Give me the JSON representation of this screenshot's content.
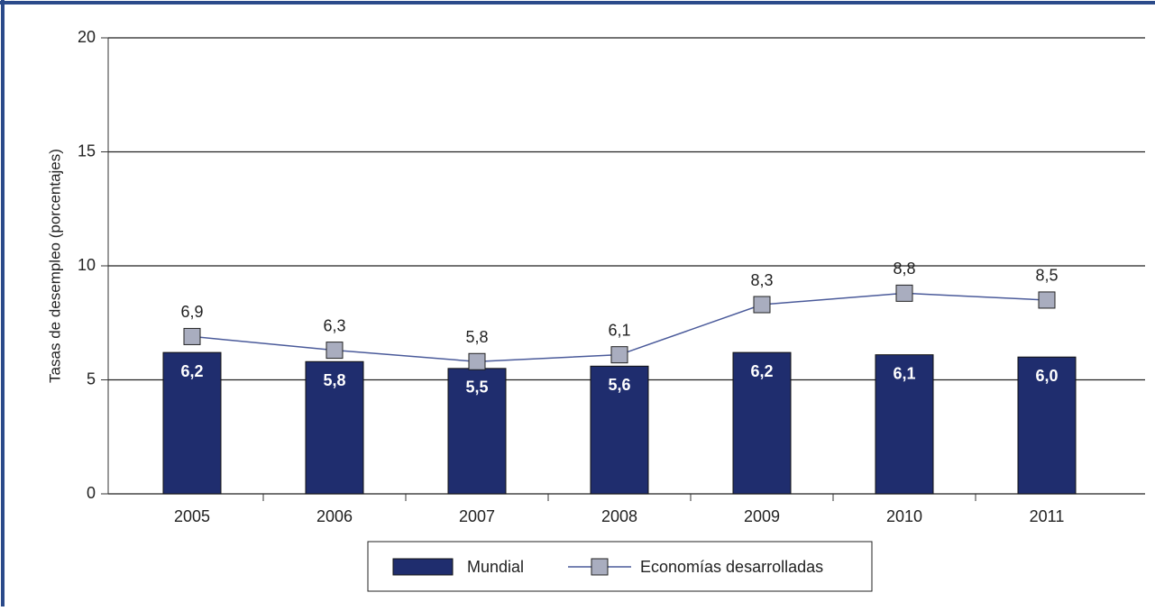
{
  "chart_data": {
    "type": "bar",
    "y_label": "Tasas de desempleo (porcentajes)",
    "categories": [
      "2005",
      "2006",
      "2007",
      "2008",
      "2009",
      "2010",
      "2011"
    ],
    "series": [
      {
        "name": "Mundial",
        "type": "bar",
        "color": "#1f2d6e",
        "values": [
          6.2,
          5.8,
          5.5,
          5.6,
          6.2,
          6.1,
          6.0
        ],
        "value_labels": [
          "6,2",
          "5,8",
          "5,5",
          "5,6",
          "6,2",
          "6,1",
          "6,0"
        ]
      },
      {
        "name": "Economías desarrolladas",
        "type": "line",
        "color": "#4a5a9a",
        "marker_color": "#a9adbf",
        "values": [
          6.9,
          6.3,
          5.8,
          6.1,
          8.3,
          8.8,
          8.5
        ],
        "value_labels": [
          "6,9",
          "6,3",
          "5,8",
          "6,1",
          "8,3",
          "8,8",
          "8,5"
        ]
      }
    ],
    "ylim": [
      0,
      20
    ],
    "yticks": [
      0,
      5,
      10,
      15,
      20
    ],
    "grid": true,
    "legend": "bottom"
  }
}
